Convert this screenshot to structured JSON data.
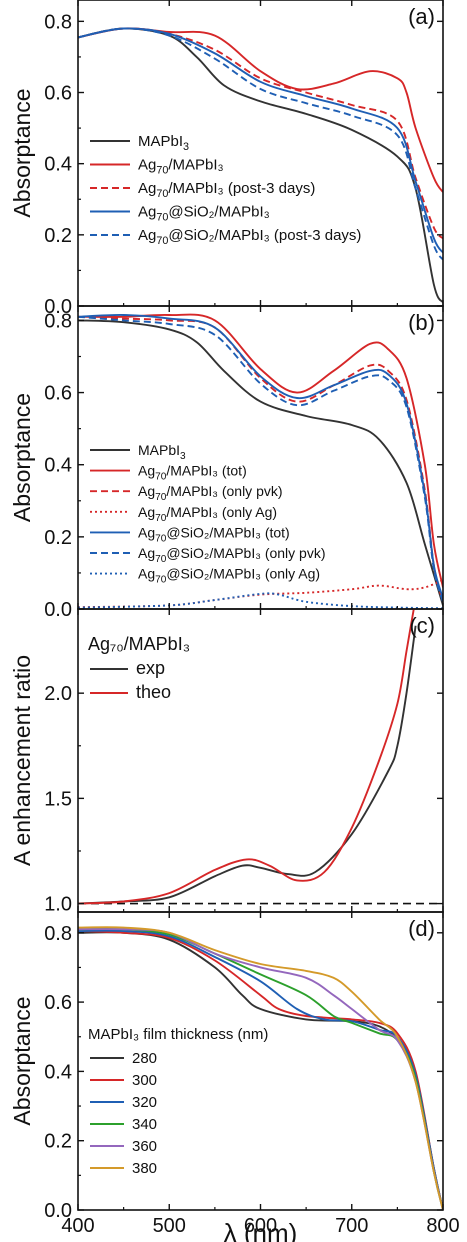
{
  "figure": {
    "x_axis_label": "λ (nm)",
    "x_ticks": [
      "400",
      "500",
      "600",
      "700",
      "800"
    ]
  },
  "chart_data": [
    {
      "panel_label": "(a)",
      "type": "line",
      "ylabel": "Absorptance",
      "xlim": [
        400,
        800
      ],
      "ylim": [
        0.0,
        0.86
      ],
      "y_ticks": [
        0.0,
        0.2,
        0.4,
        0.6,
        0.8
      ],
      "y_tick_labels": [
        "0.0",
        "0.2",
        "0.4",
        "0.6",
        "0.8"
      ],
      "legend_position": "bottom-left",
      "series": [
        {
          "name": "MAPbI",
          "sub": "3",
          "suffix": "",
          "color": "#333333",
          "dash": "solid",
          "x": [
            400,
            450,
            500,
            530,
            560,
            600,
            650,
            700,
            750,
            770,
            790,
            800
          ],
          "y": [
            0.755,
            0.78,
            0.76,
            0.7,
            0.62,
            0.575,
            0.54,
            0.495,
            0.42,
            0.33,
            0.06,
            0.01
          ]
        },
        {
          "name": "Ag",
          "sub": "70",
          "suffix": "/MAPbI₃",
          "color": "#d62728",
          "dash": "solid",
          "x": [
            400,
            450,
            500,
            550,
            600,
            640,
            680,
            720,
            750,
            760,
            770,
            790,
            800
          ],
          "y": [
            0.755,
            0.78,
            0.77,
            0.76,
            0.66,
            0.61,
            0.625,
            0.66,
            0.64,
            0.6,
            0.5,
            0.36,
            0.32
          ]
        },
        {
          "name": "Ag",
          "sub": "70",
          "suffix": "/MAPbI₃ (post-3 days)",
          "color": "#d62728",
          "dash": "dash",
          "x": [
            400,
            450,
            500,
            550,
            600,
            650,
            700,
            750,
            770,
            790,
            800
          ],
          "y": [
            0.755,
            0.78,
            0.765,
            0.72,
            0.64,
            0.6,
            0.565,
            0.52,
            0.36,
            0.22,
            0.19
          ]
        },
        {
          "name": "Ag",
          "sub": "70",
          "suffix": "@SiO₂/MAPbI₃",
          "color": "#1f5fb4",
          "dash": "solid",
          "x": [
            400,
            450,
            500,
            550,
            600,
            650,
            700,
            750,
            770,
            790,
            800
          ],
          "y": [
            0.755,
            0.78,
            0.765,
            0.71,
            0.63,
            0.59,
            0.555,
            0.5,
            0.35,
            0.19,
            0.15
          ]
        },
        {
          "name": "Ag",
          "sub": "70",
          "suffix": "@SiO₂/MAPbI₃ (post-3 days)",
          "color": "#1f5fb4",
          "dash": "dash",
          "x": [
            400,
            450,
            500,
            550,
            600,
            650,
            700,
            750,
            770,
            790,
            800
          ],
          "y": [
            0.755,
            0.78,
            0.76,
            0.695,
            0.61,
            0.57,
            0.535,
            0.48,
            0.33,
            0.17,
            0.13
          ]
        }
      ]
    },
    {
      "panel_label": "(b)",
      "type": "line",
      "ylabel": "Absorptance",
      "xlim": [
        400,
        800
      ],
      "ylim": [
        0.0,
        0.84
      ],
      "y_ticks": [
        0.0,
        0.2,
        0.4,
        0.6,
        0.8
      ],
      "y_tick_labels": [
        "0.0",
        "0.2",
        "0.4",
        "0.6",
        "0.8"
      ],
      "legend_position": "bottom-left",
      "series": [
        {
          "name": "MAPbI",
          "sub": "3",
          "suffix": "",
          "color": "#333333",
          "dash": "solid",
          "x": [
            400,
            450,
            500,
            530,
            560,
            600,
            650,
            700,
            730,
            760,
            780,
            800
          ],
          "y": [
            0.8,
            0.795,
            0.775,
            0.74,
            0.66,
            0.575,
            0.535,
            0.51,
            0.47,
            0.35,
            0.18,
            0.01
          ]
        },
        {
          "name": "Ag",
          "sub": "70",
          "suffix": "/MAPbI₃ (tot)",
          "color": "#d62728",
          "dash": "solid",
          "x": [
            400,
            450,
            500,
            550,
            600,
            640,
            680,
            720,
            740,
            760,
            780,
            790,
            800
          ],
          "y": [
            0.81,
            0.81,
            0.815,
            0.8,
            0.665,
            0.6,
            0.66,
            0.735,
            0.72,
            0.64,
            0.4,
            0.18,
            0.06
          ]
        },
        {
          "name": "Ag",
          "sub": "70",
          "suffix": "/MAPbI₃ (only pvk)",
          "color": "#d62728",
          "dash": "dash",
          "x": [
            400,
            450,
            500,
            550,
            600,
            640,
            680,
            720,
            740,
            760,
            780,
            790,
            800
          ],
          "y": [
            0.81,
            0.805,
            0.8,
            0.78,
            0.64,
            0.575,
            0.62,
            0.675,
            0.66,
            0.58,
            0.33,
            0.12,
            0.02
          ]
        },
        {
          "name": "Ag",
          "sub": "70",
          "suffix": "/MAPbI₃ (only Ag)",
          "color": "#d62728",
          "dash": "dot",
          "x": [
            400,
            500,
            550,
            600,
            650,
            700,
            730,
            760,
            780,
            800
          ],
          "y": [
            0.005,
            0.01,
            0.025,
            0.04,
            0.045,
            0.055,
            0.065,
            0.055,
            0.06,
            0.08
          ]
        },
        {
          "name": "Ag",
          "sub": "70",
          "suffix": "@SiO₂/MAPbI₃ (tot)",
          "color": "#1f5fb4",
          "dash": "solid",
          "x": [
            400,
            450,
            500,
            550,
            600,
            640,
            680,
            720,
            740,
            760,
            780,
            790,
            800
          ],
          "y": [
            0.81,
            0.815,
            0.805,
            0.78,
            0.645,
            0.585,
            0.62,
            0.66,
            0.65,
            0.57,
            0.32,
            0.12,
            0.03
          ]
        },
        {
          "name": "Ag",
          "sub": "70",
          "suffix": "@SiO₂/MAPbI₃ (only pvk)",
          "color": "#1f5fb4",
          "dash": "dash",
          "x": [
            400,
            450,
            500,
            550,
            600,
            640,
            680,
            720,
            740,
            760,
            780,
            790,
            800
          ],
          "y": [
            0.81,
            0.8,
            0.79,
            0.76,
            0.625,
            0.565,
            0.605,
            0.645,
            0.635,
            0.56,
            0.31,
            0.11,
            0.02
          ]
        },
        {
          "name": "Ag",
          "sub": "70",
          "suffix": "@SiO₂/MAPbI₃ (only Ag)",
          "color": "#1f5fb4",
          "dash": "dot",
          "x": [
            400,
            500,
            550,
            600,
            620,
            650,
            700,
            750,
            800
          ],
          "y": [
            0.004,
            0.01,
            0.025,
            0.042,
            0.04,
            0.02,
            0.008,
            0.004,
            0.002
          ]
        }
      ]
    },
    {
      "panel_label": "(c)",
      "type": "line",
      "ylabel": "A enhancement ratio",
      "xlim": [
        400,
        800
      ],
      "ylim": [
        0.96,
        2.4
      ],
      "y_ticks": [
        1.0,
        1.5,
        2.0
      ],
      "y_tick_labels": [
        "1.0",
        "1.5",
        "2.0"
      ],
      "legend_title": "Ag₇₀/MAPbI₃",
      "legend_position": "top-left",
      "reference_line_y": 1.0,
      "series": [
        {
          "name": "exp",
          "color": "#333333",
          "dash": "solid",
          "x": [
            400,
            450,
            500,
            550,
            580,
            600,
            630,
            660,
            700,
            740,
            750,
            760,
            770
          ],
          "y": [
            1.0,
            1.01,
            1.03,
            1.13,
            1.18,
            1.17,
            1.14,
            1.15,
            1.33,
            1.63,
            1.75,
            2.0,
            2.32
          ]
        },
        {
          "name": "theo",
          "color": "#d62728",
          "dash": "solid",
          "x": [
            400,
            450,
            500,
            550,
            585,
            610,
            640,
            670,
            700,
            730,
            750,
            760,
            770
          ],
          "y": [
            1.0,
            1.01,
            1.05,
            1.16,
            1.21,
            1.18,
            1.11,
            1.15,
            1.36,
            1.68,
            1.95,
            2.2,
            2.45
          ]
        }
      ]
    },
    {
      "panel_label": "(d)",
      "type": "line",
      "ylabel": "Absorptance",
      "xlim": [
        400,
        800
      ],
      "ylim": [
        0.0,
        0.86
      ],
      "y_ticks": [
        0.0,
        0.2,
        0.4,
        0.6,
        0.8
      ],
      "y_tick_labels": [
        "0.0",
        "0.2",
        "0.4",
        "0.6",
        "0.8"
      ],
      "legend_title": "MAPbI₃ film thickness (nm)",
      "legend_position": "bottom-left",
      "series": [
        {
          "name": "280",
          "color": "#333333",
          "dash": "solid",
          "x": [
            400,
            450,
            500,
            550,
            580,
            600,
            650,
            700,
            730,
            750,
            770,
            790,
            800
          ],
          "y": [
            0.8,
            0.8,
            0.78,
            0.7,
            0.62,
            0.58,
            0.55,
            0.545,
            0.53,
            0.49,
            0.39,
            0.12,
            0.0
          ]
        },
        {
          "name": "300",
          "color": "#d62728",
          "dash": "solid",
          "x": [
            400,
            450,
            500,
            550,
            600,
            620,
            650,
            700,
            730,
            750,
            770,
            790,
            800
          ],
          "y": [
            0.805,
            0.8,
            0.785,
            0.72,
            0.62,
            0.58,
            0.56,
            0.55,
            0.54,
            0.51,
            0.4,
            0.12,
            0.0
          ]
        },
        {
          "name": "320",
          "color": "#1f5fb4",
          "dash": "solid",
          "x": [
            400,
            450,
            500,
            550,
            600,
            640,
            670,
            700,
            730,
            750,
            770,
            790,
            800
          ],
          "y": [
            0.805,
            0.805,
            0.79,
            0.73,
            0.66,
            0.58,
            0.55,
            0.545,
            0.52,
            0.5,
            0.39,
            0.12,
            0.0
          ]
        },
        {
          "name": "340",
          "color": "#2ca02c",
          "dash": "solid",
          "x": [
            400,
            450,
            500,
            550,
            600,
            650,
            680,
            700,
            730,
            750,
            770,
            790,
            800
          ],
          "y": [
            0.81,
            0.81,
            0.795,
            0.74,
            0.68,
            0.62,
            0.56,
            0.54,
            0.51,
            0.49,
            0.38,
            0.11,
            0.0
          ]
        },
        {
          "name": "360",
          "color": "#9467bd",
          "dash": "solid",
          "x": [
            400,
            450,
            500,
            550,
            600,
            650,
            680,
            700,
            730,
            750,
            770,
            790,
            800
          ],
          "y": [
            0.81,
            0.81,
            0.8,
            0.74,
            0.7,
            0.67,
            0.62,
            0.58,
            0.52,
            0.49,
            0.37,
            0.11,
            0.0
          ]
        },
        {
          "name": "380",
          "color": "#d49a2a",
          "dash": "solid",
          "x": [
            400,
            450,
            500,
            550,
            600,
            650,
            680,
            700,
            730,
            750,
            770,
            790,
            800
          ],
          "y": [
            0.815,
            0.815,
            0.8,
            0.75,
            0.71,
            0.69,
            0.67,
            0.63,
            0.55,
            0.5,
            0.37,
            0.11,
            0.0
          ]
        }
      ]
    }
  ]
}
